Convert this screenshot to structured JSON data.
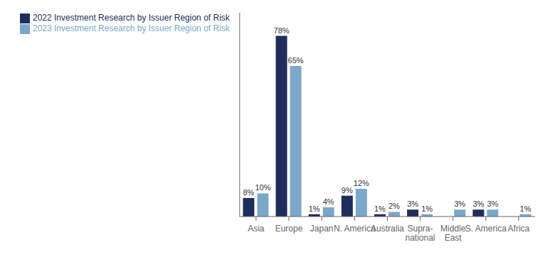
{
  "chart_data": {
    "type": "bar",
    "categories": [
      "Asia",
      "Europe",
      "Japan",
      "N. America",
      "Australia",
      "Supra-\nnational",
      "Middle\nEast",
      "S. America",
      "Africa"
    ],
    "series": [
      {
        "name": "2022 Investment Research by Issuer Region of Risk",
        "color": "#1f2d5a",
        "values": [
          8,
          78,
          1,
          9,
          1,
          3,
          0,
          3,
          0
        ],
        "value_labels": [
          "8%",
          "78%",
          "1%",
          "9%",
          "1%",
          "3%",
          null,
          "3%",
          null
        ]
      },
      {
        "name": "2023 Investment Research by Issuer Region of Risk",
        "color": "#7ba7c9",
        "values": [
          10,
          65,
          4,
          12,
          2,
          1,
          3,
          3,
          1
        ],
        "value_labels": [
          "10%",
          "65%",
          "4%",
          "12%",
          "2%",
          "1%",
          "3%",
          "3%",
          "1%"
        ]
      }
    ],
    "ylim": [
      0,
      88
    ],
    "yticks": [],
    "tick_labels": "x",
    "grid": false,
    "legend": "upper left",
    "data_labels": true
  }
}
